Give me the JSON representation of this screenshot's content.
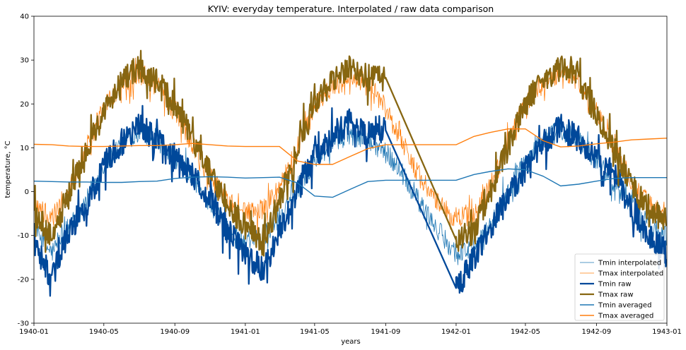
{
  "chart_data": {
    "type": "line",
    "title": "KYIV: everyday temperature. Interpolated / raw data comparison",
    "xlabel": "years",
    "ylabel": "temperature, °C",
    "xlim": [
      "1940-01-01",
      "1943-01-01"
    ],
    "ylim": [
      -30,
      40
    ],
    "grid": false,
    "legend_position": "lower-right",
    "x_tick_labels": [
      "1940-01",
      "1940-05",
      "1940-09",
      "1941-01",
      "1941-05",
      "1941-09",
      "1942-01",
      "1942-05",
      "1942-09",
      "1943-01"
    ],
    "y_tick_labels": [
      -30,
      -20,
      -10,
      0,
      10,
      20,
      30,
      40
    ],
    "x_dates": [
      "1940-01-01",
      "1940-02-01",
      "1940-03-01",
      "1940-04-01",
      "1940-05-01",
      "1940-06-01",
      "1940-07-01",
      "1940-08-01",
      "1940-09-01",
      "1940-10-01",
      "1940-11-01",
      "1940-12-01",
      "1941-01-01",
      "1941-02-01",
      "1941-03-01",
      "1941-04-01",
      "1941-05-01",
      "1941-06-01",
      "1941-07-01",
      "1941-08-01",
      "1941-09-01",
      "1941-10-01",
      "1941-11-01",
      "1941-12-01",
      "1942-01-01",
      "1942-02-01",
      "1942-03-01",
      "1942-04-01",
      "1942-05-01",
      "1942-06-01",
      "1942-07-01",
      "1942-08-01",
      "1942-09-01",
      "1942-10-01",
      "1942-11-01",
      "1942-12-01",
      "1943-01-01"
    ],
    "series": [
      {
        "name": "Tmin interpolated",
        "color": "#1f77b4",
        "values": [
          -9,
          -14,
          -8,
          -2,
          6,
          11,
          14,
          12,
          8,
          3,
          -3,
          -8,
          -12,
          -10,
          -6,
          1,
          7,
          11,
          13,
          12,
          9,
          4,
          -3,
          -9,
          -14,
          -13,
          -8,
          0,
          7,
          12,
          14,
          12,
          7,
          2,
          -3,
          -8,
          -10
        ]
      },
      {
        "name": "Tmax interpolated",
        "color": "#ff7f0e",
        "values": [
          -3,
          -6,
          0,
          10,
          19,
          24,
          27,
          25,
          18,
          11,
          3,
          -2,
          -5,
          -4,
          1,
          10,
          19,
          24,
          26,
          25,
          19,
          11,
          3,
          -3,
          -6,
          -5,
          1,
          11,
          20,
          25,
          27,
          25,
          18,
          10,
          2,
          -3,
          -5
        ]
      },
      {
        "name": "Tmin raw",
        "color": "#00489a",
        "values": [
          -12,
          -20,
          -9,
          -3,
          6,
          11,
          15,
          12,
          7,
          4,
          -2,
          -9,
          -14,
          -18,
          -9,
          0,
          8,
          12,
          16,
          13,
          14,
          null,
          null,
          null,
          -22,
          -15,
          -8,
          -1,
          5,
          11,
          15,
          12,
          7,
          4,
          -4,
          -10,
          -14
        ]
      },
      {
        "name": "Tmax raw",
        "color": "#876611",
        "values": [
          -5,
          -10,
          -1,
          10,
          18,
          26,
          28,
          25,
          20,
          12,
          4,
          -3,
          -8,
          -12,
          -2,
          9,
          20,
          25,
          28,
          26,
          26,
          null,
          null,
          null,
          -11,
          -9,
          0,
          10,
          20,
          26,
          28,
          26,
          18,
          10,
          2,
          -5,
          -6
        ]
      },
      {
        "name": "Tmin averaged",
        "color": "#1f77b4",
        "values": [
          2.4,
          2.3,
          2.2,
          2.2,
          2.1,
          2.1,
          2.3,
          2.4,
          3.0,
          3.3,
          3.4,
          3.3,
          3.1,
          3.2,
          3.3,
          2.0,
          -1.0,
          -1.3,
          0.5,
          2.3,
          2.6,
          2.6,
          2.6,
          2.6,
          2.6,
          3.9,
          4.6,
          5.2,
          5.0,
          3.5,
          1.3,
          1.7,
          2.4,
          3.0,
          3.2,
          3.2,
          3.2
        ]
      },
      {
        "name": "Tmax averaged",
        "color": "#ff7f0e",
        "values": [
          10.8,
          10.7,
          10.4,
          10.3,
          10.3,
          10.4,
          10.5,
          10.5,
          10.7,
          11.0,
          10.7,
          10.4,
          10.3,
          10.3,
          10.3,
          7.0,
          6.2,
          6.2,
          8.0,
          9.8,
          10.7,
          10.7,
          10.7,
          10.7,
          10.7,
          12.6,
          13.5,
          14.3,
          14.3,
          11.6,
          10.2,
          10.4,
          10.9,
          11.3,
          11.8,
          12.0,
          12.2
        ]
      }
    ]
  }
}
